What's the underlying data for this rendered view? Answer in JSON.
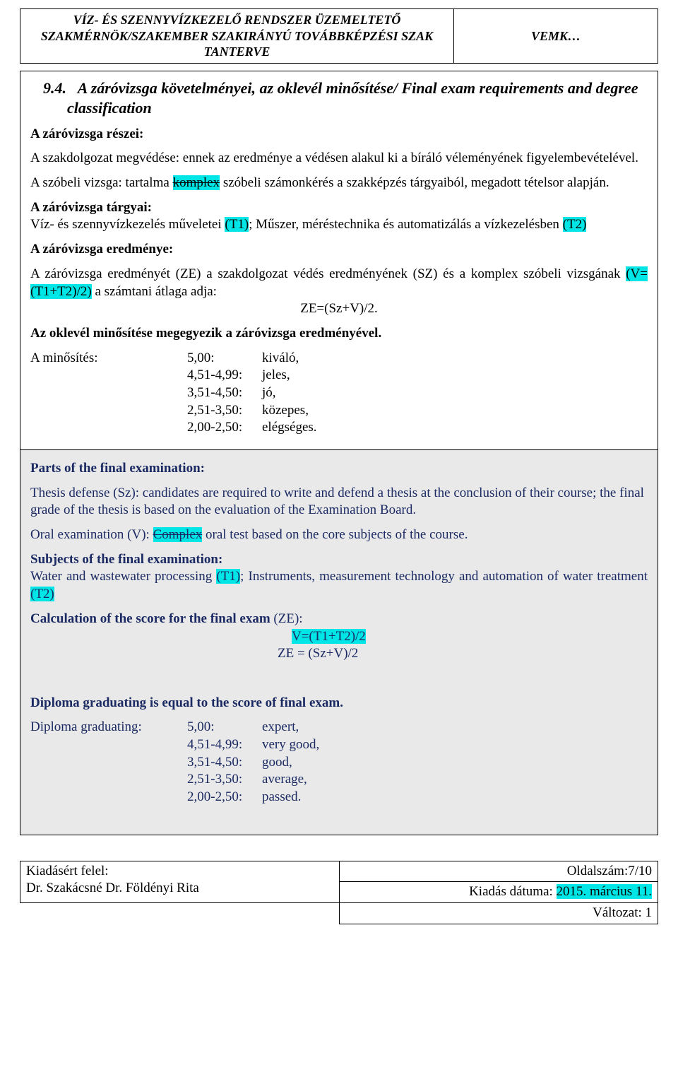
{
  "header": {
    "title_line1": "VÍZ- ÉS SZENNYVÍZKEZELŐ RENDSZER ÜZEMELTETŐ",
    "title_line2": "SZAKMÉRNÖK/SZAKEMBER SZAKIRÁNYÚ TOVÁBBKÉPZÉSI SZAK",
    "title_line3": "TANTERVE",
    "right": "VEMK…"
  },
  "main": {
    "section_no": "9.4.",
    "section_title": "A záróvizsga követelményei, az oklevél minősítése/ Final exam requirements and degree classification",
    "parts_hdr": "A záróvizsga részei:",
    "p1": "A szakdolgozat megvédése: ennek az eredménye a védésen alakul ki a bíráló véleményének figyelembevételével.",
    "p2a": "A szóbeli vizsga: tartalma ",
    "p2_hl": "komplex",
    "p2b": " szóbeli számonkérés a szakképzés tárgyaiból, megadott tételsor alapján.",
    "subjects_hdr": "A záróvizsga tárgyai:",
    "s1a": "Víz- és szennyvízkezelés műveletei ",
    "s1_t1": "(T1)",
    "s1b": "; Műszer, méréstechnika és automatizálás a vízkezelésben ",
    "s1_t2": "(T2)",
    "result_hdr": "A záróvizsga eredménye:",
    "r1a": "A záróvizsga eredményét (ZE) a szakdolgozat védés eredményének (SZ) és a komplex szóbeli vizsgának ",
    "r1_hl": "(V=(T1+T2)/2)",
    "r1b": " a számtani átlaga adja:",
    "formula": "ZE=(Sz+V)/2.",
    "equal_line": "Az oklevél minősítése megegyezik a záróvizsga eredményével.",
    "grading_label": "A minősítés:",
    "grades": [
      {
        "range": "5,00:",
        "label": "kiváló,"
      },
      {
        "range": "4,51-4,99:",
        "label": "jeles,"
      },
      {
        "range": "3,51-4,50:",
        "label": "jó,"
      },
      {
        "range": "2,51-3,50:",
        "label": "közepes,"
      },
      {
        "range": "2,00-2,50:",
        "label": "elégséges."
      }
    ]
  },
  "en": {
    "parts_hdr": "Parts of the final examination:",
    "p1": "Thesis defense (Sz): candidates are required to write and defend a thesis at the conclusion of their course; the final grade of the thesis is based on the evaluation of the Examination Board.",
    "p2a": "Oral examination (V): ",
    "p2_hl": "Complex",
    "p2b": " oral test based on the core subjects of the course.",
    "subjects_hdr": "Subjects of the final examination:",
    "s1a": "Water and wastewater processing ",
    "s1_t1": "(T1)",
    "s1b": "; Instruments, measurement technology and automation of water treatment ",
    "s1_t2": "(T2)",
    "calc_hdr_a": "Calculation of the score for the final exam ",
    "calc_hdr_b": "(ZE):",
    "calc_f1": "V=(T1+T2)/2",
    "calc_f2": "ZE = (Sz+V)/2",
    "equal_line": "Diploma graduating is equal to the score of final exam.",
    "grading_label": "Diploma graduating:",
    "grades": [
      {
        "range": "5,00:",
        "label": "expert,"
      },
      {
        "range": "4,51-4,99:",
        "label": "very good,"
      },
      {
        "range": "3,51-4,50:",
        "label": "good,"
      },
      {
        "range": "2,51-3,50:",
        "label": "average,"
      },
      {
        "range": "2,00-2,50:",
        "label": "passed."
      }
    ]
  },
  "footer": {
    "left_line1": "Kiadásért felel:",
    "left_line2": "Dr. Szakácsné Dr. Földényi Rita",
    "right_page": "Oldalszám:7/10",
    "right_date_label": "Kiadás dátuma: ",
    "right_date_val": "2015. március 11.",
    "right_version": "Változat: 1"
  }
}
